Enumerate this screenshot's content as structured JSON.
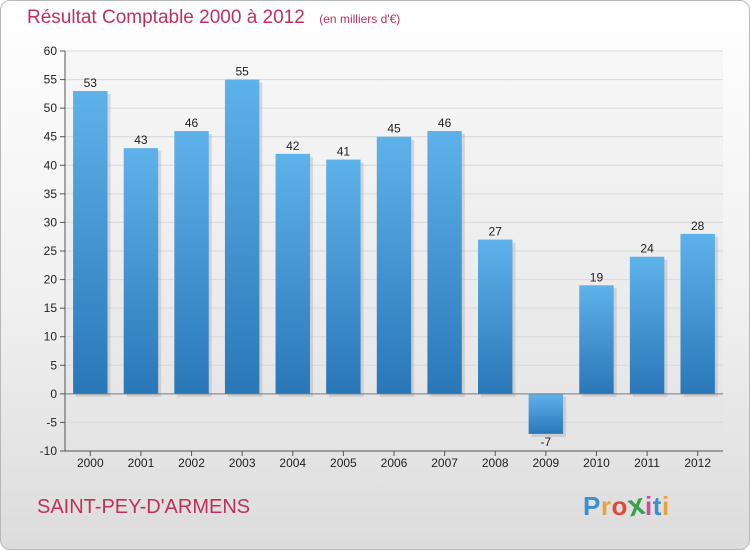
{
  "title": "Résultat Comptable 2000 à 2012",
  "unit": "(en milliers d'€)",
  "commune": "SAINT-PEY-D'ARMENS",
  "logo": {
    "text": "Proxiti",
    "letters": [
      "P",
      "r",
      "o",
      "x",
      "i",
      "t",
      "i"
    ],
    "colors": [
      "#3a8fd0",
      "#e8a23a",
      "#e04a3a",
      "#3aa04a",
      "#d04a9a",
      "#3a8fd0",
      "#e8a23a"
    ]
  },
  "colors": {
    "title": "#c0305a",
    "bar": "#3d93d6",
    "bar_light": "#5eb2ea",
    "bar_dark": "#2a77b8",
    "zero_line": "#7a7a7a",
    "grid": "#d8d8d8"
  },
  "chart_data": {
    "type": "bar",
    "categories": [
      "2000",
      "2001",
      "2002",
      "2003",
      "2004",
      "2005",
      "2006",
      "2007",
      "2008",
      "2009",
      "2010",
      "2011",
      "2012"
    ],
    "values": [
      53,
      43,
      46,
      55,
      42,
      41,
      45,
      46,
      27,
      -7,
      19,
      24,
      28
    ],
    "value_labels": [
      "53",
      "43",
      "46",
      "55",
      "42",
      "41",
      "45",
      "46",
      "27",
      "-7",
      "19",
      "24",
      "28"
    ],
    "ylim": [
      -10,
      60
    ],
    "yticks": [
      -10,
      -5,
      0,
      5,
      10,
      15,
      20,
      25,
      30,
      35,
      40,
      45,
      50,
      55,
      60
    ],
    "ytick_labels": [
      "-10",
      "-5",
      "0",
      "5",
      "10",
      "15",
      "20",
      "25",
      "30",
      "35",
      "40",
      "45",
      "50",
      "55",
      "60"
    ],
    "grid": true,
    "legend": "none"
  }
}
